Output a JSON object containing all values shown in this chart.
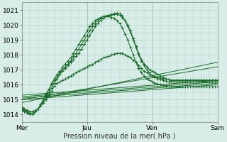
{
  "xlabel": "Pression niveau de la mer( hPa )",
  "ylim": [
    1013.5,
    1021.5
  ],
  "yticks": [
    1014,
    1015,
    1016,
    1017,
    1018,
    1019,
    1020,
    1021
  ],
  "xlim": [
    0,
    72
  ],
  "xtick_positions": [
    0,
    24,
    48,
    72
  ],
  "xtick_labels": [
    "Mer",
    "Jeu",
    "Ven",
    "Sam"
  ],
  "bg_color": "#d8ede8",
  "grid_color": "#b0d0c8",
  "line_color": "#1a6b2a",
  "straight_lines": [
    [
      [
        0,
        72
      ],
      [
        1015.0,
        1016.0
      ]
    ],
    [
      [
        0,
        72
      ],
      [
        1015.1,
        1016.1
      ]
    ],
    [
      [
        0,
        72
      ],
      [
        1015.2,
        1016.2
      ]
    ],
    [
      [
        0,
        72
      ],
      [
        1015.3,
        1016.3
      ]
    ],
    [
      [
        0,
        72
      ],
      [
        1015.0,
        1017.2
      ]
    ],
    [
      [
        0,
        72
      ],
      [
        1014.8,
        1017.5
      ]
    ]
  ],
  "marker_series": [
    [
      1014.5,
      1014.4,
      1014.3,
      1014.2,
      1014.2,
      1014.3,
      1014.4,
      1014.6,
      1014.8,
      1015.0,
      1015.3,
      1015.6,
      1015.9,
      1016.1,
      1016.2,
      1016.3,
      1016.4,
      1016.5,
      1016.6,
      1016.7,
      1016.8,
      1016.9,
      1017.0,
      1017.1,
      1017.2,
      1017.3,
      1017.35,
      1017.5,
      1017.6,
      1017.7,
      1017.8,
      1017.85,
      1017.9,
      1018.0,
      1018.05,
      1018.1,
      1018.1,
      1018.1,
      1018.0,
      1017.9,
      1017.8,
      1017.65,
      1017.5,
      1017.3,
      1017.1,
      1016.9,
      1016.8,
      1016.7,
      1016.6,
      1016.55,
      1016.5,
      1016.45,
      1016.4,
      1016.4,
      1016.35,
      1016.3,
      1016.3,
      1016.3,
      1016.3,
      1016.3,
      1016.3,
      1016.3,
      1016.3,
      1016.3,
      1016.3,
      1016.3,
      1016.3,
      1016.3,
      1016.3,
      1016.3,
      1016.3,
      1016.3,
      1016.3
    ],
    [
      1014.4,
      1014.3,
      1014.2,
      1014.1,
      1014.1,
      1014.2,
      1014.4,
      1014.6,
      1014.9,
      1015.2,
      1015.5,
      1015.8,
      1016.1,
      1016.4,
      1016.7,
      1016.9,
      1017.1,
      1017.3,
      1017.5,
      1017.7,
      1017.9,
      1018.1,
      1018.4,
      1018.7,
      1019.0,
      1019.3,
      1019.6,
      1019.9,
      1020.1,
      1020.3,
      1020.45,
      1020.55,
      1020.6,
      1020.65,
      1020.7,
      1020.7,
      1020.65,
      1020.5,
      1020.3,
      1020.0,
      1019.6,
      1019.1,
      1018.6,
      1018.1,
      1017.7,
      1017.4,
      1017.2,
      1017.0,
      1016.9,
      1016.8,
      1016.7,
      1016.6,
      1016.5,
      1016.4,
      1016.35,
      1016.3,
      1016.3,
      1016.3,
      1016.3,
      1016.3,
      1016.3,
      1016.3,
      1016.3,
      1016.3,
      1016.3,
      1016.3,
      1016.3,
      1016.3,
      1016.3,
      1016.3,
      1016.3,
      1016.3,
      1016.3
    ],
    [
      1014.4,
      1014.3,
      1014.2,
      1014.1,
      1014.1,
      1014.2,
      1014.4,
      1014.7,
      1015.0,
      1015.3,
      1015.7,
      1016.0,
      1016.3,
      1016.5,
      1016.8,
      1017.0,
      1017.2,
      1017.4,
      1017.6,
      1017.9,
      1018.1,
      1018.4,
      1018.7,
      1019.0,
      1019.3,
      1019.6,
      1019.9,
      1020.1,
      1020.3,
      1020.45,
      1020.55,
      1020.6,
      1020.65,
      1020.7,
      1020.75,
      1020.8,
      1020.75,
      1020.6,
      1020.3,
      1019.9,
      1019.5,
      1019.0,
      1018.5,
      1018.0,
      1017.6,
      1017.3,
      1017.0,
      1016.8,
      1016.6,
      1016.5,
      1016.4,
      1016.35,
      1016.3,
      1016.25,
      1016.2,
      1016.2,
      1016.2,
      1016.2,
      1016.2,
      1016.2,
      1016.2,
      1016.2,
      1016.2,
      1016.2,
      1016.2,
      1016.2,
      1016.2,
      1016.2,
      1016.2,
      1016.2,
      1016.2,
      1016.2,
      1016.2
    ],
    [
      1014.3,
      1014.2,
      1014.1,
      1014.0,
      1014.0,
      1014.2,
      1014.4,
      1014.7,
      1015.0,
      1015.4,
      1015.7,
      1016.1,
      1016.4,
      1016.7,
      1016.9,
      1017.2,
      1017.4,
      1017.6,
      1017.8,
      1018.1,
      1018.4,
      1018.7,
      1019.0,
      1019.3,
      1019.6,
      1019.9,
      1020.1,
      1020.3,
      1020.4,
      1020.5,
      1020.55,
      1020.55,
      1020.55,
      1020.5,
      1020.45,
      1020.3,
      1020.1,
      1019.8,
      1019.4,
      1019.0,
      1018.5,
      1018.0,
      1017.5,
      1017.1,
      1016.8,
      1016.6,
      1016.4,
      1016.3,
      1016.2,
      1016.1,
      1016.05,
      1016.0,
      1015.95,
      1015.9,
      1015.85,
      1015.85,
      1015.85,
      1015.85,
      1015.85,
      1015.85,
      1015.85,
      1015.85,
      1015.85,
      1015.85,
      1015.85,
      1015.85,
      1015.85,
      1015.85,
      1015.85,
      1015.85,
      1015.85,
      1015.85,
      1015.85
    ]
  ]
}
